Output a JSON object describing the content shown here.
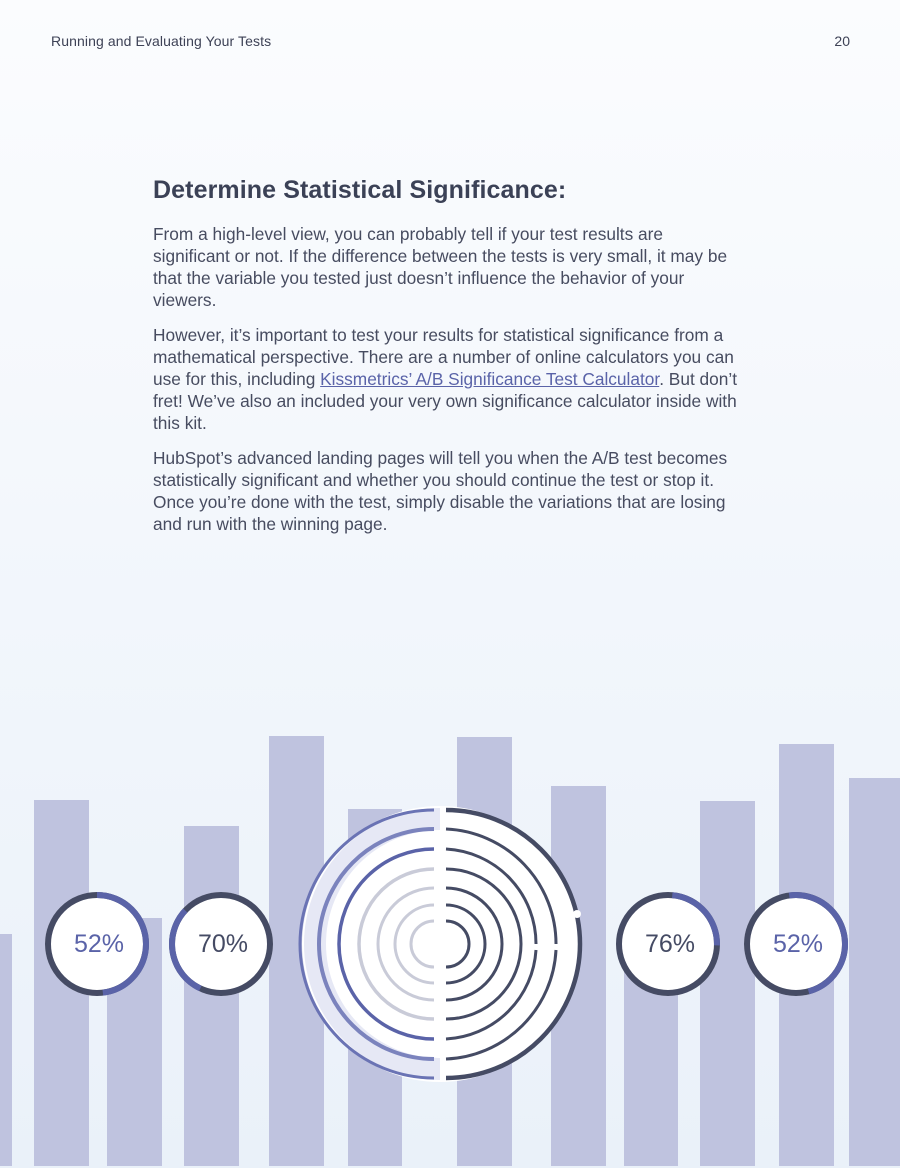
{
  "header": {
    "section_title": "Running and Evaluating Your Tests",
    "page_number": "20"
  },
  "article": {
    "heading": "Determine Statistical Significance:",
    "paragraph1": "From a high-level view, you can probably tell if your test results are significant or not. If the difference between the tests is very small, it may be that the variable you tested just doesn’t influence the behavior of your viewers.",
    "paragraph2_before_link": "However, it’s important to test your results for statistical significance from a mathematical perspective. There are a number of online calculators you can use for this, including ",
    "paragraph2_link": "Kissmetrics’ A/B Significance Test Calculator",
    "paragraph2_after_link": ". But don’t fret! We’ve also an included your very own significance calculator inside with this kit.",
    "paragraph3": "HubSpot’s advanced landing pages will tell you when the A/B test becomes statistically significant and whether you should continue the test or stop it. Once you’re done with the test, simply disable the variations that are losing and run with the winning page."
  },
  "illustration": {
    "gauges": [
      {
        "label": "52%",
        "fraction": 0.52,
        "text_color": "#5a63a8"
      },
      {
        "label": "70%",
        "fraction": 0.7,
        "text_color": "#454b64"
      },
      {
        "label": "76%",
        "fraction": 0.76,
        "text_color": "#454b64"
      },
      {
        "label": "52%",
        "fraction": 0.52,
        "text_color": "#5a63a8"
      }
    ],
    "colors": {
      "bars": "#bfc3df",
      "dark_navy": "#454b64",
      "accent_blue": "#5a63a8"
    }
  }
}
